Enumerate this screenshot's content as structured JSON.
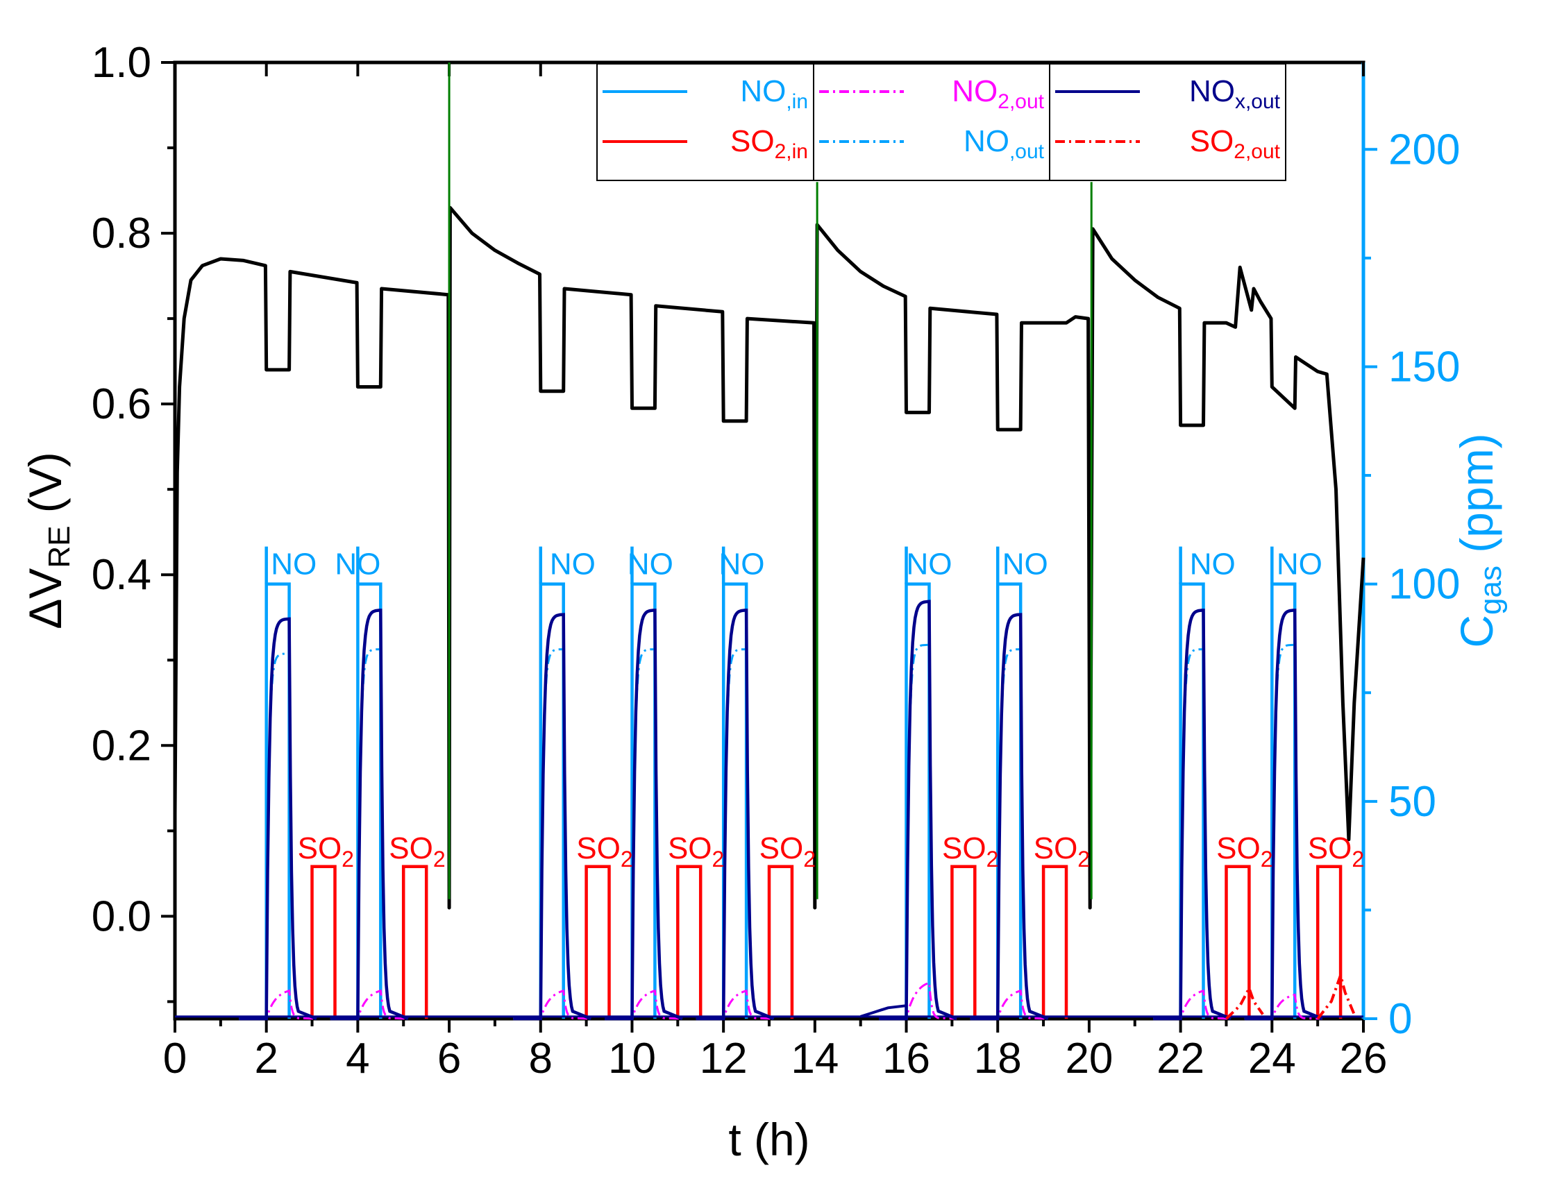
{
  "chart_data": {
    "type": "line",
    "xlabel": "t (h)",
    "ylabel_left": {
      "prefix": "ΔV",
      "sub": "RE",
      "suffix": " (V)"
    },
    "ylabel_right": {
      "prefix": "C",
      "sub": "gas",
      "suffix": " (ppm)"
    },
    "x_range": [
      0,
      26
    ],
    "y_left_range": [
      -0.12,
      1.0
    ],
    "y_right_range": [
      0,
      220
    ],
    "x_ticks": [
      "0",
      "2",
      "4",
      "6",
      "8",
      "10",
      "12",
      "14",
      "16",
      "18",
      "20",
      "22",
      "24",
      "26"
    ],
    "y_left_ticks": [
      "0.0",
      "0.2",
      "0.4",
      "0.6",
      "0.8",
      "1.0"
    ],
    "y_right_ticks": [
      "0",
      "50",
      "100",
      "150",
      "200"
    ],
    "colors": {
      "voltage": "#000000",
      "no_in": "#00a2ff",
      "so2_in": "#ff0000",
      "no2_out": "#ff00ff",
      "no_out": "#00a2ff",
      "nox_out": "#00008b",
      "so2_out": "#ff0000",
      "marker": "#007f00"
    },
    "legend": [
      {
        "key": "no_in",
        "text": "NO",
        "sub": ",in",
        "color": "#00a2ff",
        "dash": "solid"
      },
      {
        "key": "so2_in",
        "text": "SO",
        "sub": "2,in",
        "color": "#ff0000",
        "dash": "solid"
      },
      {
        "key": "no2_out",
        "text": "NO",
        "sub": "2,out",
        "color": "#ff00ff",
        "dash": "dashdot"
      },
      {
        "key": "no_out",
        "text": "NO",
        "sub": ",out",
        "color": "#00a2ff",
        "dash": "dashdot"
      },
      {
        "key": "nox_out",
        "text": "NO",
        "sub": "x,out",
        "color": "#00008b",
        "dash": "solid"
      },
      {
        "key": "so2_out",
        "text": "SO",
        "sub": "2,out",
        "color": "#ff0000",
        "dash": "dashdot"
      }
    ],
    "markers_t": [
      6.0,
      14.05,
      20.05
    ],
    "no_pulses": [
      [
        2.0,
        2.5
      ],
      [
        4.0,
        4.5
      ],
      [
        8.0,
        8.5
      ],
      [
        10.0,
        10.5
      ],
      [
        12.0,
        12.5
      ],
      [
        16.0,
        16.5
      ],
      [
        18.0,
        18.5
      ],
      [
        22.0,
        22.5
      ],
      [
        24.0,
        24.5
      ]
    ],
    "no_pulse_ppm": 100,
    "so2_pulses": [
      [
        3.0,
        3.5
      ],
      [
        5.0,
        5.5
      ],
      [
        9.0,
        9.5
      ],
      [
        11.0,
        11.5
      ],
      [
        13.0,
        13.5
      ],
      [
        17.0,
        17.5
      ],
      [
        19.0,
        19.5
      ],
      [
        23.0,
        23.5
      ],
      [
        25.0,
        25.5
      ]
    ],
    "so2_pulse_ppm": 35,
    "nox_out_plateaus": [
      92,
      94,
      93,
      94,
      94,
      96,
      93,
      94,
      94
    ],
    "no_out_plateaus": [
      84,
      85,
      85,
      85,
      85,
      86,
      85,
      85,
      86
    ],
    "no2_out_plateaus": [
      7,
      7,
      7,
      7,
      7,
      9,
      7,
      7,
      6
    ],
    "no_labels": [
      {
        "t": 2.6,
        "text": "NO"
      },
      {
        "t": 4.0,
        "text": "NO"
      },
      {
        "t": 8.7,
        "text": "NO"
      },
      {
        "t": 10.4,
        "text": "NO"
      },
      {
        "t": 12.4,
        "text": "NO"
      },
      {
        "t": 16.5,
        "text": "NO"
      },
      {
        "t": 18.6,
        "text": "NO"
      },
      {
        "t": 22.7,
        "text": "NO"
      },
      {
        "t": 24.6,
        "text": "NO"
      }
    ],
    "so2_labels": [
      {
        "t": 3.3,
        "text": "SO",
        "sub": "2"
      },
      {
        "t": 5.3,
        "text": "SO",
        "sub": "2"
      },
      {
        "t": 9.4,
        "text": "SO",
        "sub": "2"
      },
      {
        "t": 11.4,
        "text": "SO",
        "sub": "2"
      },
      {
        "t": 13.4,
        "text": "SO",
        "sub": "2"
      },
      {
        "t": 17.4,
        "text": "SO",
        "sub": "2"
      },
      {
        "t": 19.4,
        "text": "SO",
        "sub": "2"
      },
      {
        "t": 23.4,
        "text": "SO",
        "sub": "2"
      },
      {
        "t": 25.4,
        "text": "SO",
        "sub": "2"
      }
    ],
    "voltage_series": {
      "name": "ΔV_RE",
      "points": [
        [
          0.0,
          0.12
        ],
        [
          0.05,
          0.52
        ],
        [
          0.1,
          0.62
        ],
        [
          0.2,
          0.7
        ],
        [
          0.35,
          0.745
        ],
        [
          0.6,
          0.762
        ],
        [
          1.0,
          0.77
        ],
        [
          1.5,
          0.768
        ],
        [
          1.98,
          0.762
        ],
        [
          2.0,
          0.64
        ],
        [
          2.5,
          0.64
        ],
        [
          2.52,
          0.755
        ],
        [
          3.98,
          0.742
        ],
        [
          4.0,
          0.62
        ],
        [
          4.5,
          0.62
        ],
        [
          4.52,
          0.735
        ],
        [
          5.98,
          0.728
        ],
        [
          6.0,
          0.01
        ],
        [
          6.02,
          0.83
        ],
        [
          6.5,
          0.8
        ],
        [
          7.0,
          0.78
        ],
        [
          7.5,
          0.765
        ],
        [
          7.98,
          0.752
        ],
        [
          8.0,
          0.615
        ],
        [
          8.5,
          0.615
        ],
        [
          8.52,
          0.735
        ],
        [
          9.98,
          0.728
        ],
        [
          10.0,
          0.595
        ],
        [
          10.5,
          0.595
        ],
        [
          10.52,
          0.715
        ],
        [
          11.98,
          0.708
        ],
        [
          12.0,
          0.58
        ],
        [
          12.5,
          0.58
        ],
        [
          12.52,
          0.7
        ],
        [
          13.98,
          0.695
        ],
        [
          14.0,
          0.01
        ],
        [
          14.05,
          0.81
        ],
        [
          14.5,
          0.78
        ],
        [
          15.0,
          0.755
        ],
        [
          15.5,
          0.738
        ],
        [
          15.98,
          0.726
        ],
        [
          16.0,
          0.59
        ],
        [
          16.5,
          0.59
        ],
        [
          16.52,
          0.712
        ],
        [
          17.98,
          0.705
        ],
        [
          18.0,
          0.57
        ],
        [
          18.5,
          0.57
        ],
        [
          18.52,
          0.695
        ],
        [
          19.2,
          0.695
        ],
        [
          19.5,
          0.695
        ],
        [
          19.7,
          0.702
        ],
        [
          19.98,
          0.7
        ],
        [
          20.02,
          0.01
        ],
        [
          20.08,
          0.805
        ],
        [
          20.5,
          0.77
        ],
        [
          21.0,
          0.745
        ],
        [
          21.5,
          0.725
        ],
        [
          21.98,
          0.712
        ],
        [
          22.0,
          0.575
        ],
        [
          22.5,
          0.575
        ],
        [
          22.52,
          0.695
        ],
        [
          23.0,
          0.695
        ],
        [
          23.2,
          0.69
        ],
        [
          23.3,
          0.76
        ],
        [
          23.45,
          0.73
        ],
        [
          23.55,
          0.71
        ],
        [
          23.6,
          0.735
        ],
        [
          23.75,
          0.72
        ],
        [
          23.98,
          0.7
        ],
        [
          24.0,
          0.62
        ],
        [
          24.5,
          0.595
        ],
        [
          24.52,
          0.655
        ],
        [
          25.0,
          0.638
        ],
        [
          25.2,
          0.635
        ],
        [
          25.4,
          0.5
        ],
        [
          25.55,
          0.25
        ],
        [
          25.68,
          0.09
        ],
        [
          25.8,
          0.25
        ],
        [
          26.0,
          0.42
        ]
      ]
    }
  }
}
